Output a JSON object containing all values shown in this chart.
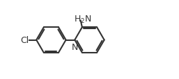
{
  "background_color": "#ffffff",
  "line_color": "#333333",
  "line_width": 1.5,
  "text_color": "#333333",
  "font_size": 9,
  "figsize": [
    2.57,
    1.15
  ],
  "dpi": 100
}
